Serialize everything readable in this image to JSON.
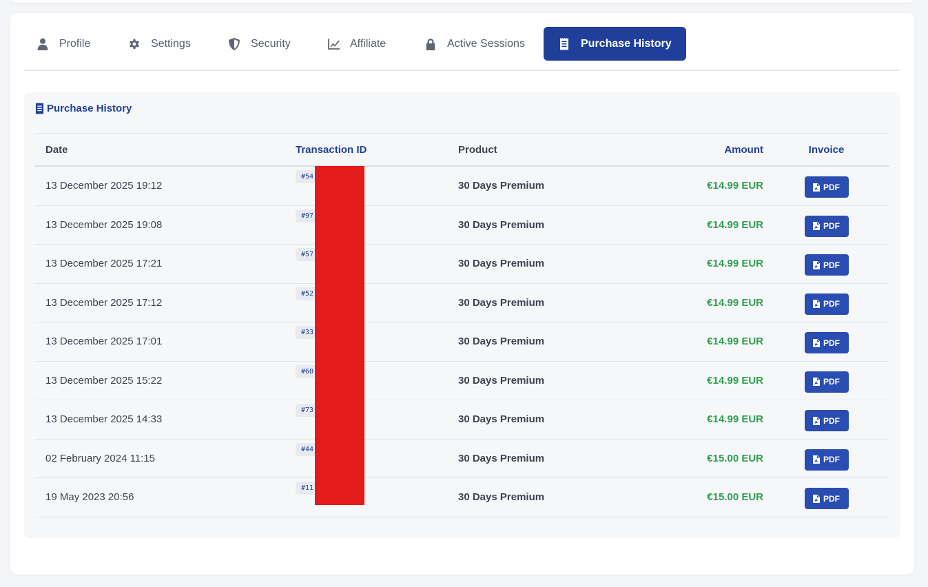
{
  "tabs": [
    {
      "label": "Profile",
      "icon": "user-icon"
    },
    {
      "label": "Settings",
      "icon": "gear-icon"
    },
    {
      "label": "Security",
      "icon": "shield-icon"
    },
    {
      "label": "Affiliate",
      "icon": "chart-line-icon"
    },
    {
      "label": "Active Sessions",
      "icon": "lock-icon"
    },
    {
      "label": "Purchase History",
      "icon": "receipt-icon",
      "active": true
    }
  ],
  "panel": {
    "title": "Purchase History"
  },
  "table": {
    "headers": {
      "date": "Date",
      "transaction_id": "Transaction ID",
      "product": "Product",
      "amount": "Amount",
      "invoice": "Invoice"
    },
    "rows": [
      {
        "date": "13 December 2025 19:12",
        "tx": "#54",
        "product": "30 Days Premium",
        "amount": "€14.99 EUR",
        "invoice": "PDF"
      },
      {
        "date": "13 December 2025 19:08",
        "tx": "#97",
        "product": "30 Days Premium",
        "amount": "€14.99 EUR",
        "invoice": "PDF"
      },
      {
        "date": "13 December 2025 17:21",
        "tx": "#57",
        "product": "30 Days Premium",
        "amount": "€14.99 EUR",
        "invoice": "PDF"
      },
      {
        "date": "13 December 2025 17:12",
        "tx": "#52",
        "product": "30 Days Premium",
        "amount": "€14.99 EUR",
        "invoice": "PDF"
      },
      {
        "date": "13 December 2025 17:01",
        "tx": "#33",
        "product": "30 Days Premium",
        "amount": "€14.99 EUR",
        "invoice": "PDF"
      },
      {
        "date": "13 December 2025 15:22",
        "tx": "#60",
        "product": "30 Days Premium",
        "amount": "€14.99 EUR",
        "invoice": "PDF"
      },
      {
        "date": "13 December 2025 14:33",
        "tx": "#73",
        "product": "30 Days Premium",
        "amount": "€14.99 EUR",
        "invoice": "PDF"
      },
      {
        "date": "02 February 2024 11:15",
        "tx": "#44",
        "product": "30 Days Premium",
        "amount": "€15.00 EUR",
        "invoice": "PDF"
      },
      {
        "date": "19 May 2023 20:56",
        "tx": "#11",
        "product": "30 Days Premium",
        "amount": "€15.00 EUR",
        "invoice": "PDF"
      }
    ]
  },
  "colors": {
    "accent": "#1f3f9b",
    "button": "#2a4db1",
    "amount": "#2e9e4f",
    "redaction": "#e31b1b"
  }
}
